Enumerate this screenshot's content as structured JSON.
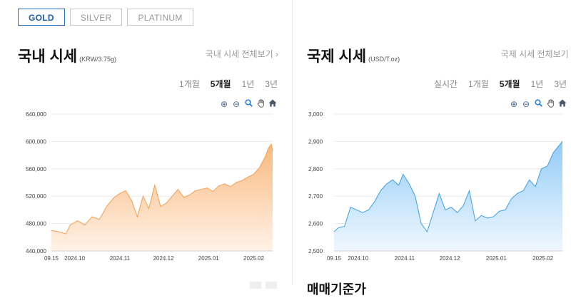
{
  "tabs": [
    {
      "label": "GOLD",
      "active": true
    },
    {
      "label": "SILVER",
      "active": false
    },
    {
      "label": "PLATINUM",
      "active": false
    }
  ],
  "domestic": {
    "title": "국내 시세",
    "unit": "(KRW/3.75g)",
    "view_all": "국내 시세 전체보기 ›",
    "periods": [
      {
        "label": "1개월",
        "active": false
      },
      {
        "label": "5개월",
        "active": true
      },
      {
        "label": "1년",
        "active": false
      },
      {
        "label": "3년",
        "active": false
      }
    ]
  },
  "international": {
    "title": "국제 시세",
    "unit": "(USD/T.oz)",
    "view_all": "국제 시세 전체보기 ›",
    "periods": [
      {
        "label": "실시간",
        "active": false
      },
      {
        "label": "1개월",
        "active": false
      },
      {
        "label": "5개월",
        "active": true
      },
      {
        "label": "1년",
        "active": false
      },
      {
        "label": "3년",
        "active": false
      }
    ]
  },
  "toolbar_icons": [
    "zoom-in-icon",
    "zoom-out-icon",
    "magnifier-icon",
    "hand-pan-icon",
    "home-icon"
  ],
  "trade_title": "매매기준가",
  "chart_data": [
    {
      "type": "area",
      "color": "#f5a45a",
      "fill_top": "#f9b477",
      "fill_bottom": "#fff1e4",
      "ylim": [
        440000,
        640000
      ],
      "yticks": [
        "440,000",
        "480,000",
        "520,000",
        "560,000",
        "600,000",
        "640,000"
      ],
      "ytick_values": [
        440000,
        480000,
        520000,
        560000,
        600000,
        640000
      ],
      "xticks": [
        "09.15",
        "2024.10",
        "2024.11",
        "2024.12",
        "2025.01",
        "2025.02"
      ],
      "xtick_dates": [
        "2024-09-15",
        "2024-10-01",
        "2024-11-01",
        "2024-12-01",
        "2025-01-01",
        "2025-02-01"
      ],
      "xlim": [
        "2024-09-15",
        "2025-02-14"
      ],
      "x": [
        "2024-09-15",
        "2024-09-20",
        "2024-09-25",
        "2024-09-28",
        "2024-10-03",
        "2024-10-08",
        "2024-10-13",
        "2024-10-18",
        "2024-10-23",
        "2024-10-28",
        "2024-11-01",
        "2024-11-05",
        "2024-11-09",
        "2024-11-13",
        "2024-11-17",
        "2024-11-21",
        "2024-11-25",
        "2024-11-29",
        "2024-12-03",
        "2024-12-07",
        "2024-12-11",
        "2024-12-15",
        "2024-12-19",
        "2024-12-23",
        "2024-12-27",
        "2024-12-31",
        "2025-01-04",
        "2025-01-08",
        "2025-01-12",
        "2025-01-16",
        "2025-01-20",
        "2025-01-24",
        "2025-01-28",
        "2025-02-01",
        "2025-02-05",
        "2025-02-09",
        "2025-02-11",
        "2025-02-13",
        "2025-02-14"
      ],
      "values": [
        470000,
        468000,
        465000,
        478000,
        484000,
        478000,
        490000,
        486000,
        505000,
        518000,
        524000,
        528000,
        514000,
        490000,
        520000,
        502000,
        536000,
        505000,
        510000,
        520000,
        530000,
        518000,
        522000,
        528000,
        530000,
        532000,
        527000,
        535000,
        538000,
        534000,
        540000,
        543000,
        548000,
        552000,
        562000,
        578000,
        590000,
        596000,
        587000
      ]
    },
    {
      "type": "area",
      "color": "#4aa6e6",
      "fill_top": "#8cc8f4",
      "fill_bottom": "#eef7ff",
      "ylim": [
        2500,
        3000
      ],
      "yticks": [
        "2,500",
        "2,600",
        "2,700",
        "2,800",
        "2,900",
        "3,000"
      ],
      "ytick_values": [
        2500,
        2600,
        2700,
        2800,
        2900,
        3000
      ],
      "xticks": [
        "09.15",
        "2024.10",
        "2024.11",
        "2024.12",
        "2025.01",
        "2025.02"
      ],
      "xtick_dates": [
        "2024-09-15",
        "2024-10-01",
        "2024-11-01",
        "2024-12-01",
        "2025-01-01",
        "2025-02-01"
      ],
      "xlim": [
        "2024-09-15",
        "2025-02-14"
      ],
      "x": [
        "2024-09-15",
        "2024-09-18",
        "2024-09-22",
        "2024-09-26",
        "2024-09-30",
        "2024-10-04",
        "2024-10-08",
        "2024-10-12",
        "2024-10-16",
        "2024-10-20",
        "2024-10-24",
        "2024-10-28",
        "2024-10-31",
        "2024-11-04",
        "2024-11-08",
        "2024-11-12",
        "2024-11-16",
        "2024-11-20",
        "2024-11-24",
        "2024-11-28",
        "2024-12-02",
        "2024-12-06",
        "2024-12-10",
        "2024-12-14",
        "2024-12-18",
        "2024-12-22",
        "2024-12-26",
        "2024-12-30",
        "2025-01-03",
        "2025-01-07",
        "2025-01-11",
        "2025-01-15",
        "2025-01-19",
        "2025-01-23",
        "2025-01-27",
        "2025-01-31",
        "2025-02-04",
        "2025-02-08",
        "2025-02-11",
        "2025-02-14"
      ],
      "values": [
        2570,
        2585,
        2590,
        2660,
        2650,
        2640,
        2650,
        2680,
        2720,
        2745,
        2760,
        2740,
        2780,
        2745,
        2700,
        2600,
        2570,
        2640,
        2710,
        2650,
        2660,
        2640,
        2665,
        2720,
        2610,
        2630,
        2620,
        2625,
        2645,
        2650,
        2690,
        2710,
        2720,
        2760,
        2735,
        2800,
        2810,
        2860,
        2880,
        2900
      ]
    }
  ]
}
